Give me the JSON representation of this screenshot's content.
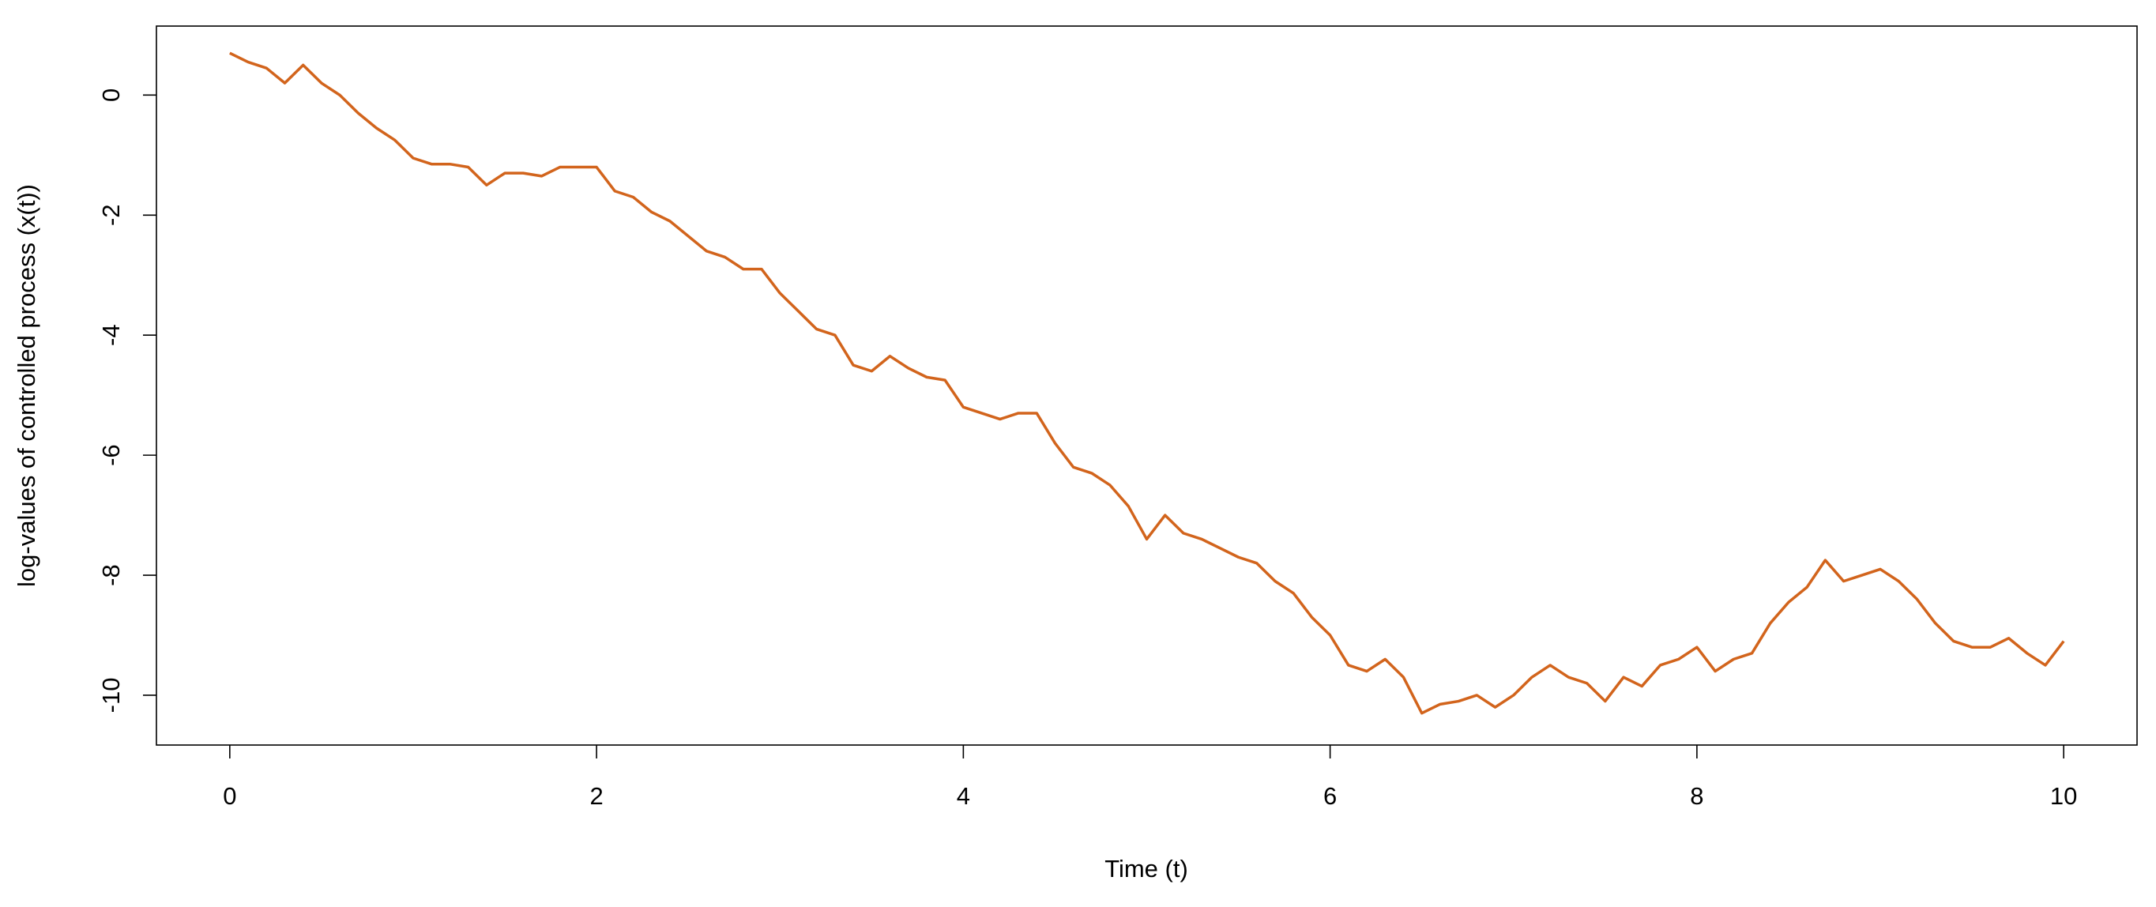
{
  "chart_data": {
    "type": "line",
    "xlabel": "Time (t)",
    "ylabel": "log-values of controlled process (x(t))",
    "x": [
      0,
      0.1,
      0.2,
      0.3,
      0.4,
      0.5,
      0.6,
      0.7,
      0.8,
      0.9,
      1,
      1.1,
      1.2,
      1.3,
      1.4,
      1.5,
      1.6,
      1.7,
      1.8,
      1.9,
      2,
      2.1,
      2.2,
      2.3,
      2.4,
      2.5,
      2.6,
      2.7,
      2.8,
      2.9,
      3,
      3.1,
      3.2,
      3.3,
      3.4,
      3.5,
      3.6,
      3.7,
      3.8,
      3.9,
      4,
      4.1,
      4.2,
      4.3,
      4.4,
      4.5,
      4.6,
      4.7,
      4.8,
      4.9,
      5,
      5.1,
      5.2,
      5.3,
      5.4,
      5.5,
      5.6,
      5.7,
      5.8,
      5.9,
      6,
      6.1,
      6.2,
      6.3,
      6.4,
      6.5,
      6.6,
      6.7,
      6.8,
      6.9,
      7,
      7.1,
      7.2,
      7.3,
      7.4,
      7.5,
      7.6,
      7.7,
      7.8,
      7.9,
      8,
      8.1,
      8.2,
      8.3,
      8.4,
      8.5,
      8.6,
      8.7,
      8.8,
      8.9,
      9,
      9.1,
      9.2,
      9.3,
      9.4,
      9.5,
      9.6,
      9.7,
      9.8,
      9.9,
      10
    ],
    "series": [
      {
        "color": "#d2641c",
        "values": [
          0.7,
          0.55,
          0.45,
          0.2,
          0.5,
          0.2,
          0.0,
          -0.3,
          -0.55,
          -0.75,
          -1.05,
          -1.15,
          -1.15,
          -1.2,
          -1.5,
          -1.3,
          -1.3,
          -1.35,
          -1.2,
          -1.2,
          -1.2,
          -1.6,
          -1.7,
          -1.95,
          -2.1,
          -2.35,
          -2.6,
          -2.7,
          -2.9,
          -2.9,
          -3.3,
          -3.6,
          -3.9,
          -4.0,
          -4.5,
          -4.6,
          -4.35,
          -4.55,
          -4.7,
          -4.75,
          -5.2,
          -5.3,
          -5.4,
          -5.3,
          -5.3,
          -5.8,
          -6.2,
          -6.3,
          -6.5,
          -6.85,
          -7.4,
          -7.0,
          -7.3,
          -7.4,
          -7.55,
          -7.7,
          -7.8,
          -8.1,
          -8.3,
          -8.7,
          -9.0,
          -9.5,
          -9.6,
          -9.4,
          -9.7,
          -10.3,
          -10.15,
          -10.1,
          -10.0,
          -10.2,
          -10.0,
          -9.7,
          -9.5,
          -9.7,
          -9.8,
          -10.1,
          -9.7,
          -9.85,
          -9.5,
          -9.4,
          -9.2,
          -9.6,
          -9.4,
          -9.3,
          -8.8,
          -8.45,
          -8.2,
          -7.75,
          -8.1,
          -8.0,
          -7.9,
          -8.1,
          -8.4,
          -8.8,
          -9.1,
          -9.2,
          -9.2,
          -9.05,
          -9.3,
          -9.5,
          -9.1
        ]
      }
    ],
    "xlim": [
      -0.4,
      10.4
    ],
    "ylim": [
      -10.83,
      1.15
    ],
    "xticks": [
      0,
      2,
      4,
      6,
      8,
      10
    ],
    "yticks": [
      0,
      -2,
      -4,
      -6,
      -8,
      -10
    ]
  }
}
